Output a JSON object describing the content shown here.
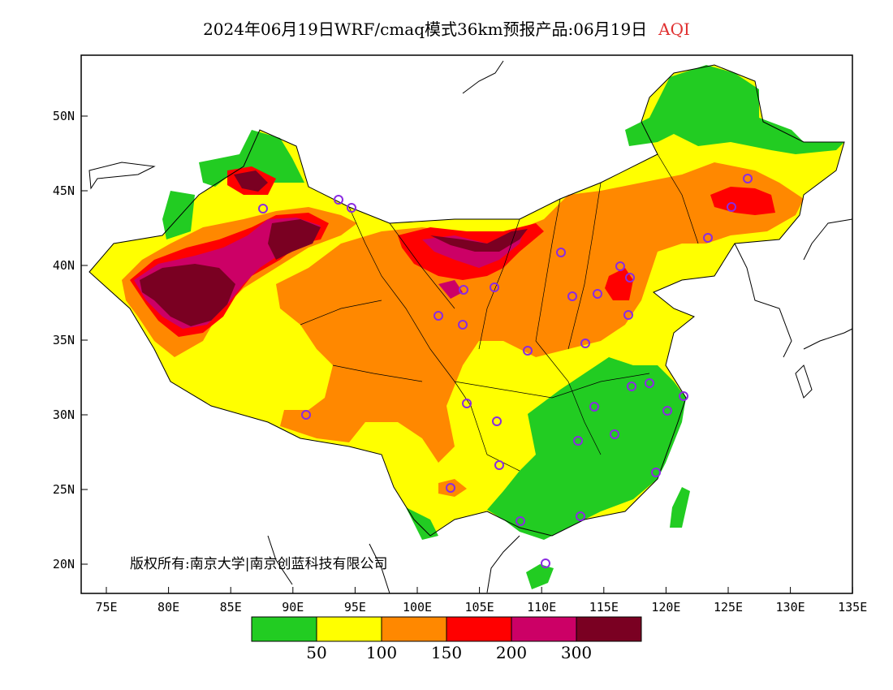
{
  "title": {
    "main": "2024年06月19日WRF/cmaq模式36km预报产品:06月19日",
    "variable": "AQI"
  },
  "copyright": "版权所有:南京大学|南京创蓝科技有限公司",
  "lat_labels": [
    "50N",
    "45N",
    "40N",
    "35N",
    "30N",
    "25N",
    "20N"
  ],
  "lon_labels": [
    "75E",
    "80E",
    "85E",
    "90E",
    "95E",
    "100E",
    "105E",
    "110E",
    "115E",
    "120E",
    "125E",
    "130E",
    "135E"
  ],
  "legend": {
    "colors": [
      "#22cc22",
      "#ffff00",
      "#ff8800",
      "#ff0000",
      "#cc0066",
      "#7a0022"
    ],
    "ticks": [
      "50",
      "100",
      "150",
      "200",
      "300"
    ]
  },
  "colors": {
    "good": "#22cc22",
    "moderate": "#ffff00",
    "unhealthy_sensitive": "#ff8800",
    "unhealthy": "#ff0000",
    "very_unhealthy": "#cc0066",
    "hazardous": "#7a0022",
    "station_marker": "#8a2be2"
  }
}
